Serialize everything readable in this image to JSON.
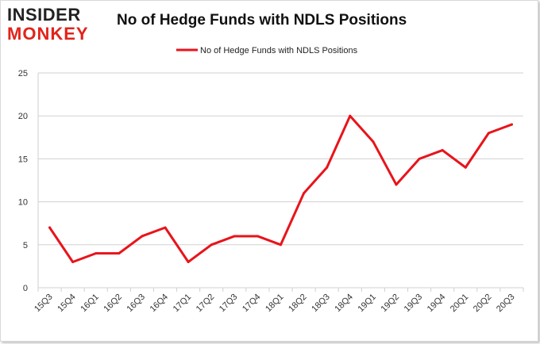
{
  "logo": {
    "line1": "INSIDER",
    "line2": "MONKEY"
  },
  "chart_data": {
    "type": "line",
    "title": "No of Hedge Funds with NDLS Positions",
    "legend": [
      "No of Hedge Funds with NDLS Positions"
    ],
    "legend_position": "top-center",
    "categories": [
      "15Q3",
      "15Q4",
      "16Q1",
      "16Q2",
      "16Q3",
      "16Q4",
      "17Q1",
      "17Q2",
      "17Q3",
      "17Q4",
      "18Q1",
      "18Q2",
      "18Q3",
      "18Q4",
      "19Q1",
      "19Q2",
      "19Q3",
      "19Q4",
      "20Q1",
      "20Q2",
      "20Q3"
    ],
    "series": [
      {
        "name": "No of Hedge Funds with NDLS Positions",
        "values": [
          7,
          3,
          4,
          4,
          6,
          7,
          3,
          5,
          6,
          6,
          5,
          11,
          14,
          20,
          17,
          12,
          15,
          16,
          14,
          18,
          19
        ],
        "color": "#e8141b"
      }
    ],
    "ylim": [
      0,
      25
    ],
    "yticks": [
      0,
      5,
      10,
      15,
      20,
      25
    ],
    "xlabel": "",
    "ylabel": "",
    "grid": true
  }
}
